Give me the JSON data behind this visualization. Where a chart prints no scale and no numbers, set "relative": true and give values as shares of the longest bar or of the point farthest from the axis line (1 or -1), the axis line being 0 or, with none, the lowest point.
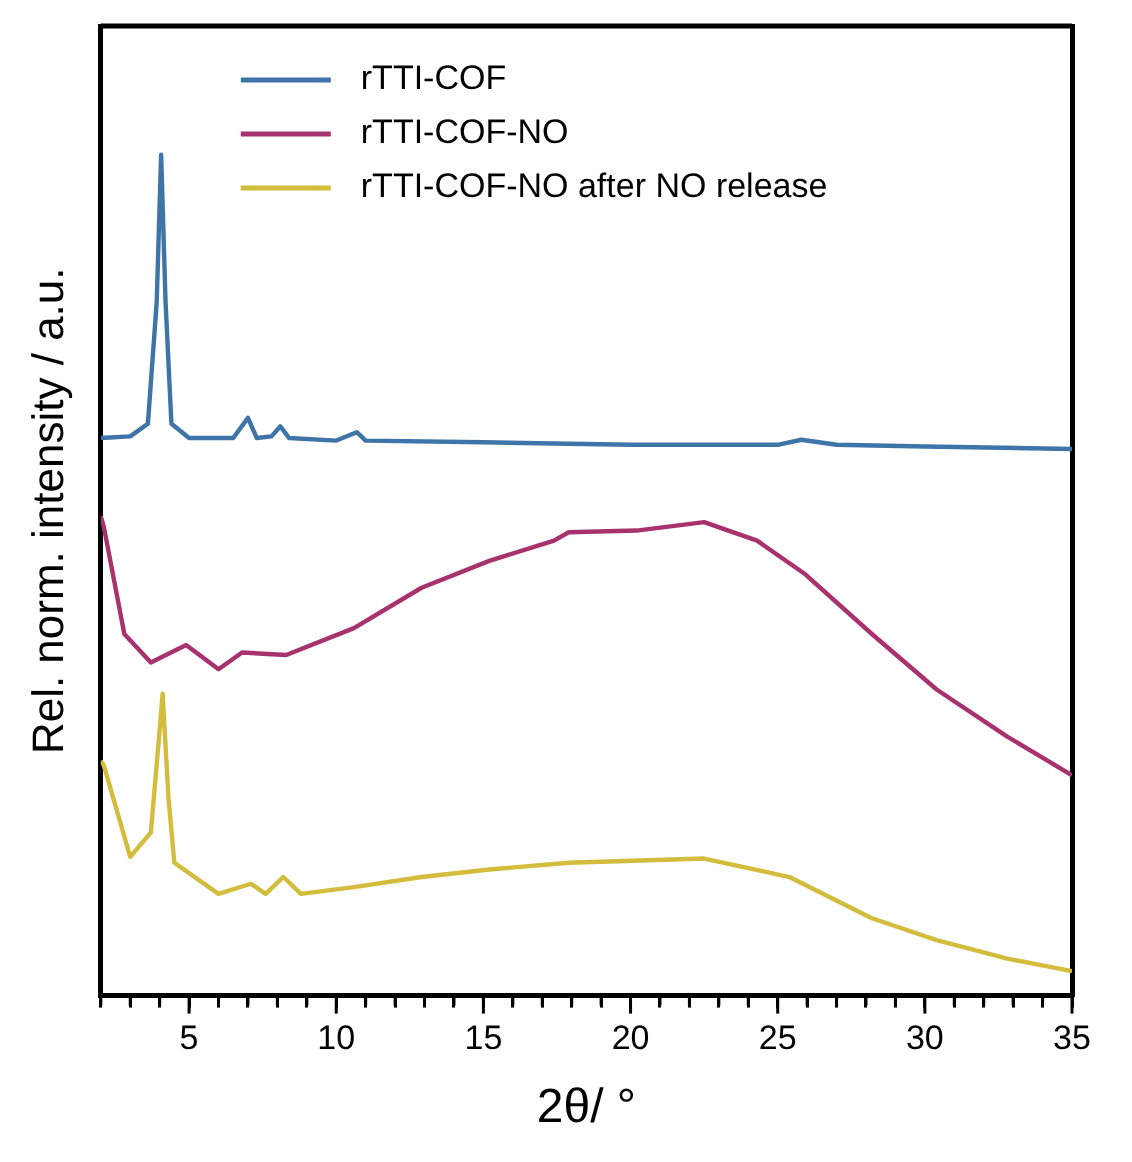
{
  "chart_data": {
    "type": "line",
    "relative": true,
    "xlabel": "2θ/ °",
    "ylabel": "Rel. norm. intensity / a.u.",
    "xlim": [
      2,
      35
    ],
    "xticks": [
      {
        "value": 2,
        "label": null
      },
      {
        "value": 3,
        "label": null
      },
      {
        "value": 4,
        "label": null
      },
      5,
      {
        "value": 6,
        "label": null
      },
      {
        "value": 7,
        "label": null
      },
      {
        "value": 8,
        "label": null
      },
      {
        "value": 9,
        "label": null
      },
      10,
      {
        "value": 11,
        "label": null
      },
      {
        "value": 12,
        "label": null
      },
      {
        "value": 13,
        "label": null
      },
      {
        "value": 14,
        "label": null
      },
      15,
      {
        "value": 16,
        "label": null
      },
      {
        "value": 17,
        "label": null
      },
      {
        "value": 18,
        "label": null
      },
      {
        "value": 19,
        "label": null
      },
      20,
      {
        "value": 21,
        "label": null
      },
      {
        "value": 22,
        "label": null
      },
      {
        "value": 23,
        "label": null
      },
      {
        "value": 24,
        "label": null
      },
      25,
      {
        "value": 26,
        "label": null
      },
      {
        "value": 27,
        "label": null
      },
      {
        "value": 28,
        "label": null
      },
      {
        "value": 29,
        "label": null
      },
      30,
      {
        "value": 31,
        "label": null
      },
      {
        "value": 32,
        "label": null
      },
      {
        "value": 33,
        "label": null
      },
      {
        "value": 34,
        "label": null
      },
      35
    ],
    "grid": false,
    "legend": "top",
    "marker": "none",
    "line_style": "solid",
    "series": [
      {
        "name": "rTTI-COF",
        "color": "#3e74a8",
        "x": [
          2,
          3,
          3.6,
          3.9,
          4.05,
          4.2,
          4.4,
          5,
          6.5,
          7,
          7.3,
          7.8,
          8.1,
          8.4,
          10,
          10.7,
          11,
          15,
          20,
          25,
          25.8,
          27,
          30,
          35
        ],
        "values": [
          0.663,
          0.665,
          0.68,
          0.825,
          1.0,
          0.825,
          0.68,
          0.663,
          0.663,
          0.687,
          0.663,
          0.665,
          0.677,
          0.663,
          0.66,
          0.67,
          0.66,
          0.658,
          0.655,
          0.655,
          0.661,
          0.655,
          0.653,
          0.65
        ]
      },
      {
        "name": "rTTI-COF-NO",
        "color": "#a8326e",
        "x": [
          2,
          2.1,
          2.8,
          3.7,
          4.9,
          6,
          6.8,
          8.3,
          10.6,
          12.9,
          15.2,
          17.4,
          17.9,
          20.2,
          22.5,
          24.3,
          25.9,
          28.2,
          30.4,
          32.8,
          35
        ],
        "values": [
          0.57,
          0.558,
          0.43,
          0.396,
          0.417,
          0.388,
          0.408,
          0.405,
          0.437,
          0.485,
          0.517,
          0.541,
          0.551,
          0.553,
          0.563,
          0.541,
          0.502,
          0.43,
          0.364,
          0.308,
          0.262
        ]
      },
      {
        "name": "rTTI-COF-NO after NO release",
        "color": "#d4bc3c",
        "x": [
          2,
          2.1,
          3,
          3.7,
          4,
          4.1,
          4.3,
          4.5,
          6,
          7.1,
          7.6,
          8.2,
          8.8,
          10.6,
          12.9,
          15.2,
          17.9,
          22.5,
          25.4,
          28.2,
          30.4,
          32.8,
          35
        ],
        "values": [
          0.279,
          0.274,
          0.165,
          0.194,
          0.316,
          0.359,
          0.235,
          0.158,
          0.121,
          0.133,
          0.121,
          0.141,
          0.121,
          0.129,
          0.141,
          0.15,
          0.158,
          0.163,
          0.141,
          0.092,
          0.066,
          0.044,
          0.029
        ]
      }
    ]
  }
}
